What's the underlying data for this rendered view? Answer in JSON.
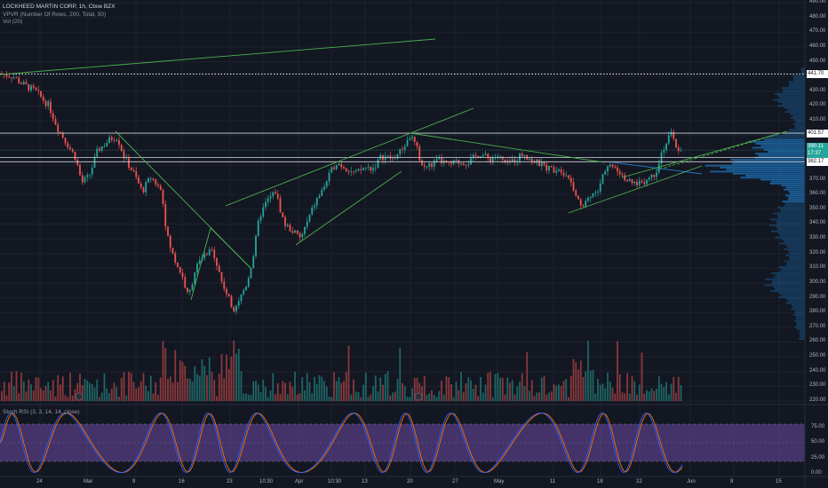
{
  "header": {
    "title": "LOCKHEED MARTIN CORP, 1h, Cboe BZX",
    "indicator1": "VPVR (Number Of Rows, 200, Total, 50)",
    "indicator2": "Vol (20)"
  },
  "stoch_panel": {
    "label": "Stoch RSI (3, 3, 14, 14, close)",
    "levels": [
      "75.00",
      "50.00",
      "25.00",
      "0.00"
    ]
  },
  "price_axis": {
    "labels": [
      "490.00",
      "480.00",
      "470.00",
      "460.00",
      "450.00",
      "440.00",
      "430.00",
      "420.00",
      "410.00",
      "400.00",
      "390.00",
      "380.00",
      "370.00",
      "360.00",
      "350.00",
      "340.00",
      "330.00",
      "320.00",
      "310.00",
      "300.00",
      "290.00",
      "280.00",
      "270.00",
      "260.00",
      "250.00",
      "240.00",
      "230.00",
      "220.00"
    ]
  },
  "price_tags": [
    {
      "text": "441.70",
      "bg": "#ffffff",
      "fg": "#131722"
    },
    {
      "text": "401.57",
      "bg": "#ffffff",
      "fg": "#131722"
    },
    {
      "text": "390.11",
      "bg": "#26a69a",
      "fg": "#ffffff"
    },
    {
      "text": "17:37",
      "bg": "#26a69a",
      "fg": "#ffffff"
    },
    {
      "text": "382.17",
      "bg": "#ffffff",
      "fg": "#131722"
    }
  ],
  "time_axis": {
    "labels": [
      "24",
      "Mar",
      "9",
      "16",
      "23",
      "10:30",
      "Apr",
      "10:30",
      "13",
      "20",
      "27",
      "May",
      "11",
      "18",
      "22",
      "Jun",
      "8",
      "15"
    ]
  },
  "colors": {
    "background": "#131722",
    "up": "#26a69a",
    "down": "#ef5350",
    "trendline": "#4caf50",
    "vpvr": "#2196f3",
    "stoch_band": "#7e57c2",
    "stoch_k": "#2962ff",
    "stoch_d": "#ff6d00"
  },
  "chart_data": {
    "type": "candlestick",
    "ylim": [
      220,
      490
    ],
    "horizontal_levels": [
      441.7,
      401.57,
      385.0,
      382.17
    ]
  }
}
